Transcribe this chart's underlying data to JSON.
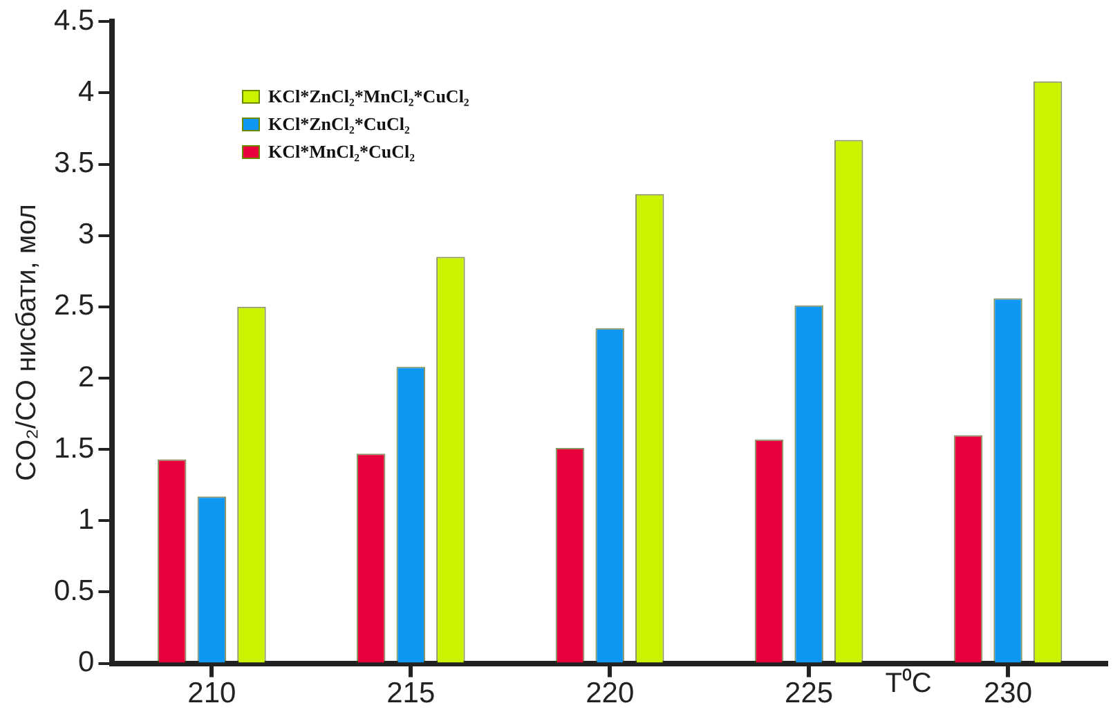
{
  "chart_data": {
    "type": "bar",
    "xlabel": "T⁰C",
    "ylabel": "CO₂/CO нисбати, мол",
    "categories": [
      "210",
      "215",
      "220",
      "225",
      "230"
    ],
    "series": [
      {
        "name": "KCl*MnCl₂*CuCl₂",
        "color": "#e8003c",
        "values": [
          1.43,
          1.47,
          1.51,
          1.57,
          1.6
        ]
      },
      {
        "name": "KCl*ZnCl₂*CuCl₂",
        "color": "#0d96f2",
        "values": [
          1.17,
          2.08,
          2.35,
          2.51,
          2.56
        ]
      },
      {
        "name": "KCl*ZnCl₂*MnCl₂*CuCl₂",
        "color": "#ccf200",
        "values": [
          2.5,
          2.85,
          3.29,
          3.67,
          4.08
        ]
      }
    ],
    "ylim": [
      0,
      4.5
    ],
    "yticks": [
      0,
      0.5,
      1,
      1.5,
      2,
      2.5,
      3,
      3.5,
      4,
      4.5
    ],
    "grid": false,
    "legend": "top left"
  }
}
